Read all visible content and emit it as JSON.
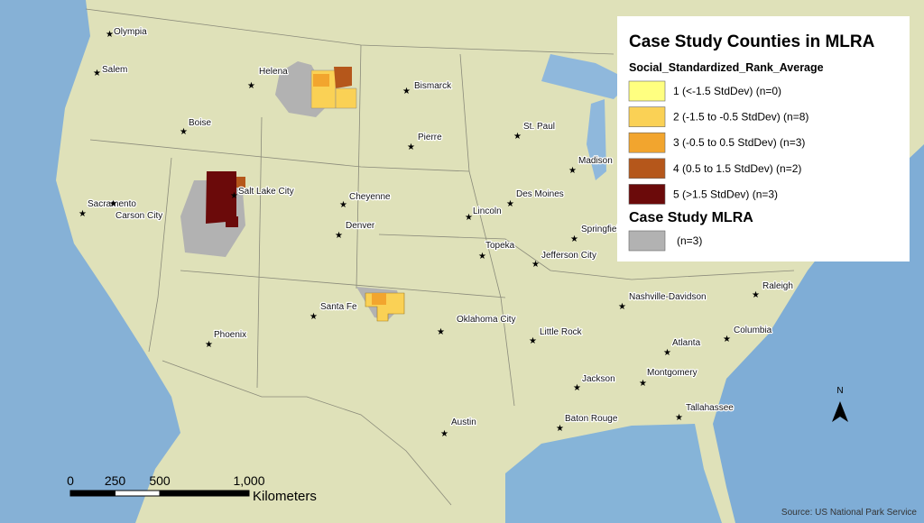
{
  "title": "Case Study Counties in MLRA",
  "legend": {
    "field_title": "Social_Standardized_Rank_Average",
    "classes": [
      {
        "label": "1 (<-1.5 StdDev) (n=0)",
        "color": "#ffff80"
      },
      {
        "label": "2 (-1.5 to -0.5 StdDev) (n=8)",
        "color": "#fad155"
      },
      {
        "label": "3 (-0.5 to 0.5 StdDev) (n=3)",
        "color": "#f2a52e"
      },
      {
        "label": "4 (0.5 to 1.5 StdDev) (n=2)",
        "color": "#b5571b"
      },
      {
        "label": "5 (>1.5 StdDev) (n=3)",
        "color": "#6b0a0a"
      }
    ],
    "mlra_title": "Case Study MLRA",
    "mlra": {
      "label": "(n=3)",
      "color": "#b2b2b2"
    }
  },
  "cities": [
    "Olympia",
    "Salem",
    "Helena",
    "Boise",
    "Bismarck",
    "Pierre",
    "St. Paul",
    "Madison",
    "Sacramento",
    "Carson City",
    "Salt Lake City",
    "Cheyenne",
    "Denver",
    "Lincoln",
    "Des Moines",
    "Springfield",
    "Topeka",
    "Jefferson City",
    "Santa Fe",
    "Oklahoma City",
    "Little Rock",
    "Nashville-Davidson",
    "Raleigh",
    "Columbia",
    "Atlanta",
    "Phoenix",
    "Jackson",
    "Montgomery",
    "Tallahassee",
    "Baton Rouge",
    "Austin"
  ],
  "scale_bar": {
    "ticks": [
      0,
      250,
      500,
      {
        "value": 1000,
        "label": "1,000"
      }
    ],
    "unit": "Kilometers"
  },
  "north_label": "N",
  "source": "Source: US National Park Service"
}
